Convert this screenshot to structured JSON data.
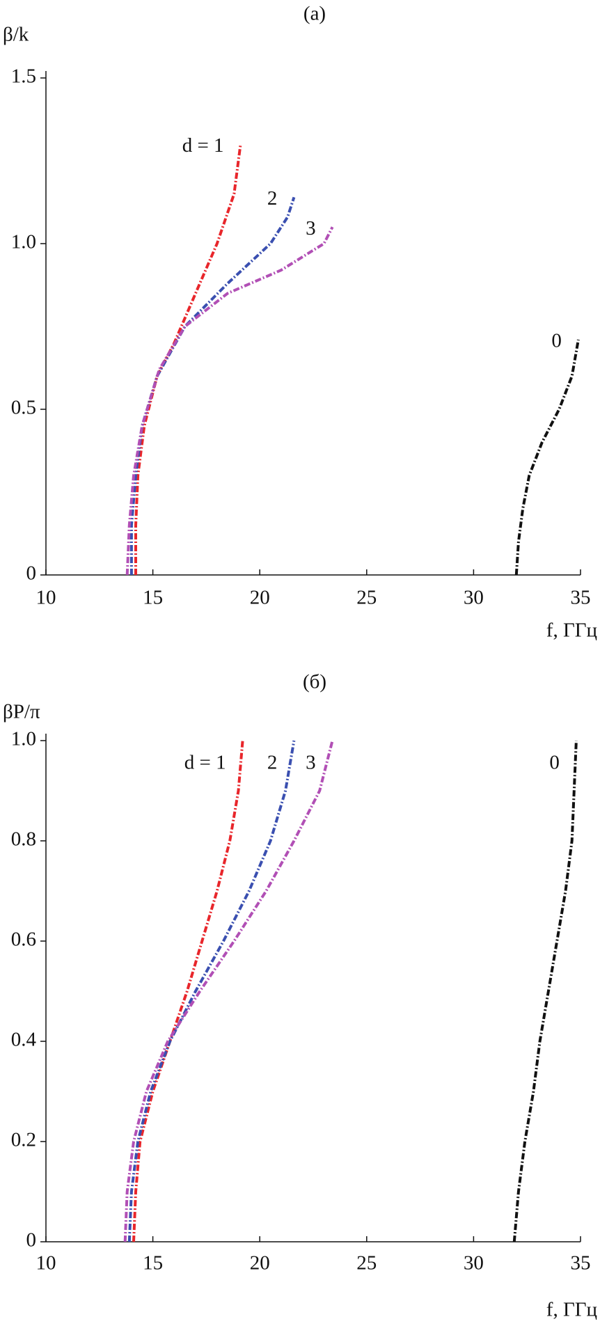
{
  "chart_data": [
    {
      "type": "line",
      "title": "(a)",
      "y_label": "β/k",
      "x_label": "f, ГГц",
      "xlim": [
        10,
        35
      ],
      "xticks": [
        10,
        15,
        20,
        25,
        30,
        35
      ],
      "ylim": [
        0,
        1.5
      ],
      "yticks": [
        0,
        0.5,
        {
          "value": 1,
          "label": "1.0"
        },
        1.5
      ],
      "series": [
        {
          "name": "d = 1",
          "color": "#e8262b",
          "x": [
            14.2,
            14.2,
            14.3,
            14.6,
            15.2,
            16,
            17,
            18,
            18.8,
            19.1
          ],
          "values": [
            0,
            0.15,
            0.3,
            0.45,
            0.6,
            0.7,
            0.85,
            1.0,
            1.15,
            1.3
          ]
        },
        {
          "name": "2",
          "color": "#3a4fb0",
          "x": [
            14.0,
            14.0,
            14.2,
            14.5,
            15.2,
            16.5,
            18.5,
            20.5,
            21.3,
            21.6
          ],
          "values": [
            0,
            0.15,
            0.3,
            0.45,
            0.6,
            0.75,
            0.88,
            1.0,
            1.08,
            1.14
          ]
        },
        {
          "name": "3",
          "color": "#b14fb5",
          "x": [
            13.8,
            13.9,
            14.1,
            14.5,
            15.3,
            16.5,
            18.5,
            21,
            23,
            23.4
          ],
          "values": [
            0,
            0.15,
            0.3,
            0.45,
            0.62,
            0.75,
            0.85,
            0.92,
            1.0,
            1.05
          ]
        },
        {
          "name": "0",
          "color": "#111111",
          "x": [
            32,
            32.1,
            32.3,
            32.6,
            33.2,
            34,
            34.6,
            34.9
          ],
          "values": [
            0,
            0.1,
            0.2,
            0.3,
            0.4,
            0.5,
            0.6,
            0.71
          ]
        }
      ]
    },
    {
      "type": "line",
      "title": "(б)",
      "y_label": "βP/π",
      "x_label": "f, ГГц",
      "xlim": [
        10,
        35
      ],
      "xticks": [
        10,
        15,
        20,
        25,
        30,
        35
      ],
      "ylim": [
        0,
        1
      ],
      "yticks": [
        0,
        0.2,
        0.4,
        0.6,
        0.8,
        {
          "value": 1,
          "label": "1.0"
        }
      ],
      "series": [
        {
          "name": "d = 1",
          "color": "#e8262b",
          "x": [
            14.1,
            14.2,
            14.4,
            15,
            15.8,
            16.6,
            17.3,
            18,
            18.6,
            19,
            19.2
          ],
          "values": [
            0,
            0.1,
            0.2,
            0.3,
            0.4,
            0.5,
            0.6,
            0.7,
            0.8,
            0.9,
            1.0
          ]
        },
        {
          "name": "2",
          "color": "#3a4fb0",
          "x": [
            13.9,
            14.0,
            14.3,
            14.9,
            15.8,
            17,
            18.3,
            19.5,
            20.5,
            21.2,
            21.6
          ],
          "values": [
            0,
            0.1,
            0.2,
            0.3,
            0.4,
            0.5,
            0.6,
            0.7,
            0.8,
            0.9,
            1.0
          ]
        },
        {
          "name": "3",
          "color": "#b14fb5",
          "x": [
            13.7,
            13.8,
            14.1,
            14.7,
            15.7,
            17.2,
            18.8,
            20.3,
            21.6,
            22.8,
            23.4
          ],
          "values": [
            0,
            0.1,
            0.2,
            0.3,
            0.4,
            0.5,
            0.6,
            0.7,
            0.8,
            0.9,
            1.0
          ]
        },
        {
          "name": "0",
          "color": "#111111",
          "x": [
            31.9,
            32.1,
            32.4,
            32.8,
            33.1,
            33.5,
            33.9,
            34.3,
            34.6,
            34.7,
            34.8
          ],
          "values": [
            0,
            0.1,
            0.2,
            0.3,
            0.4,
            0.5,
            0.6,
            0.7,
            0.8,
            0.9,
            1.0
          ]
        }
      ]
    }
  ]
}
